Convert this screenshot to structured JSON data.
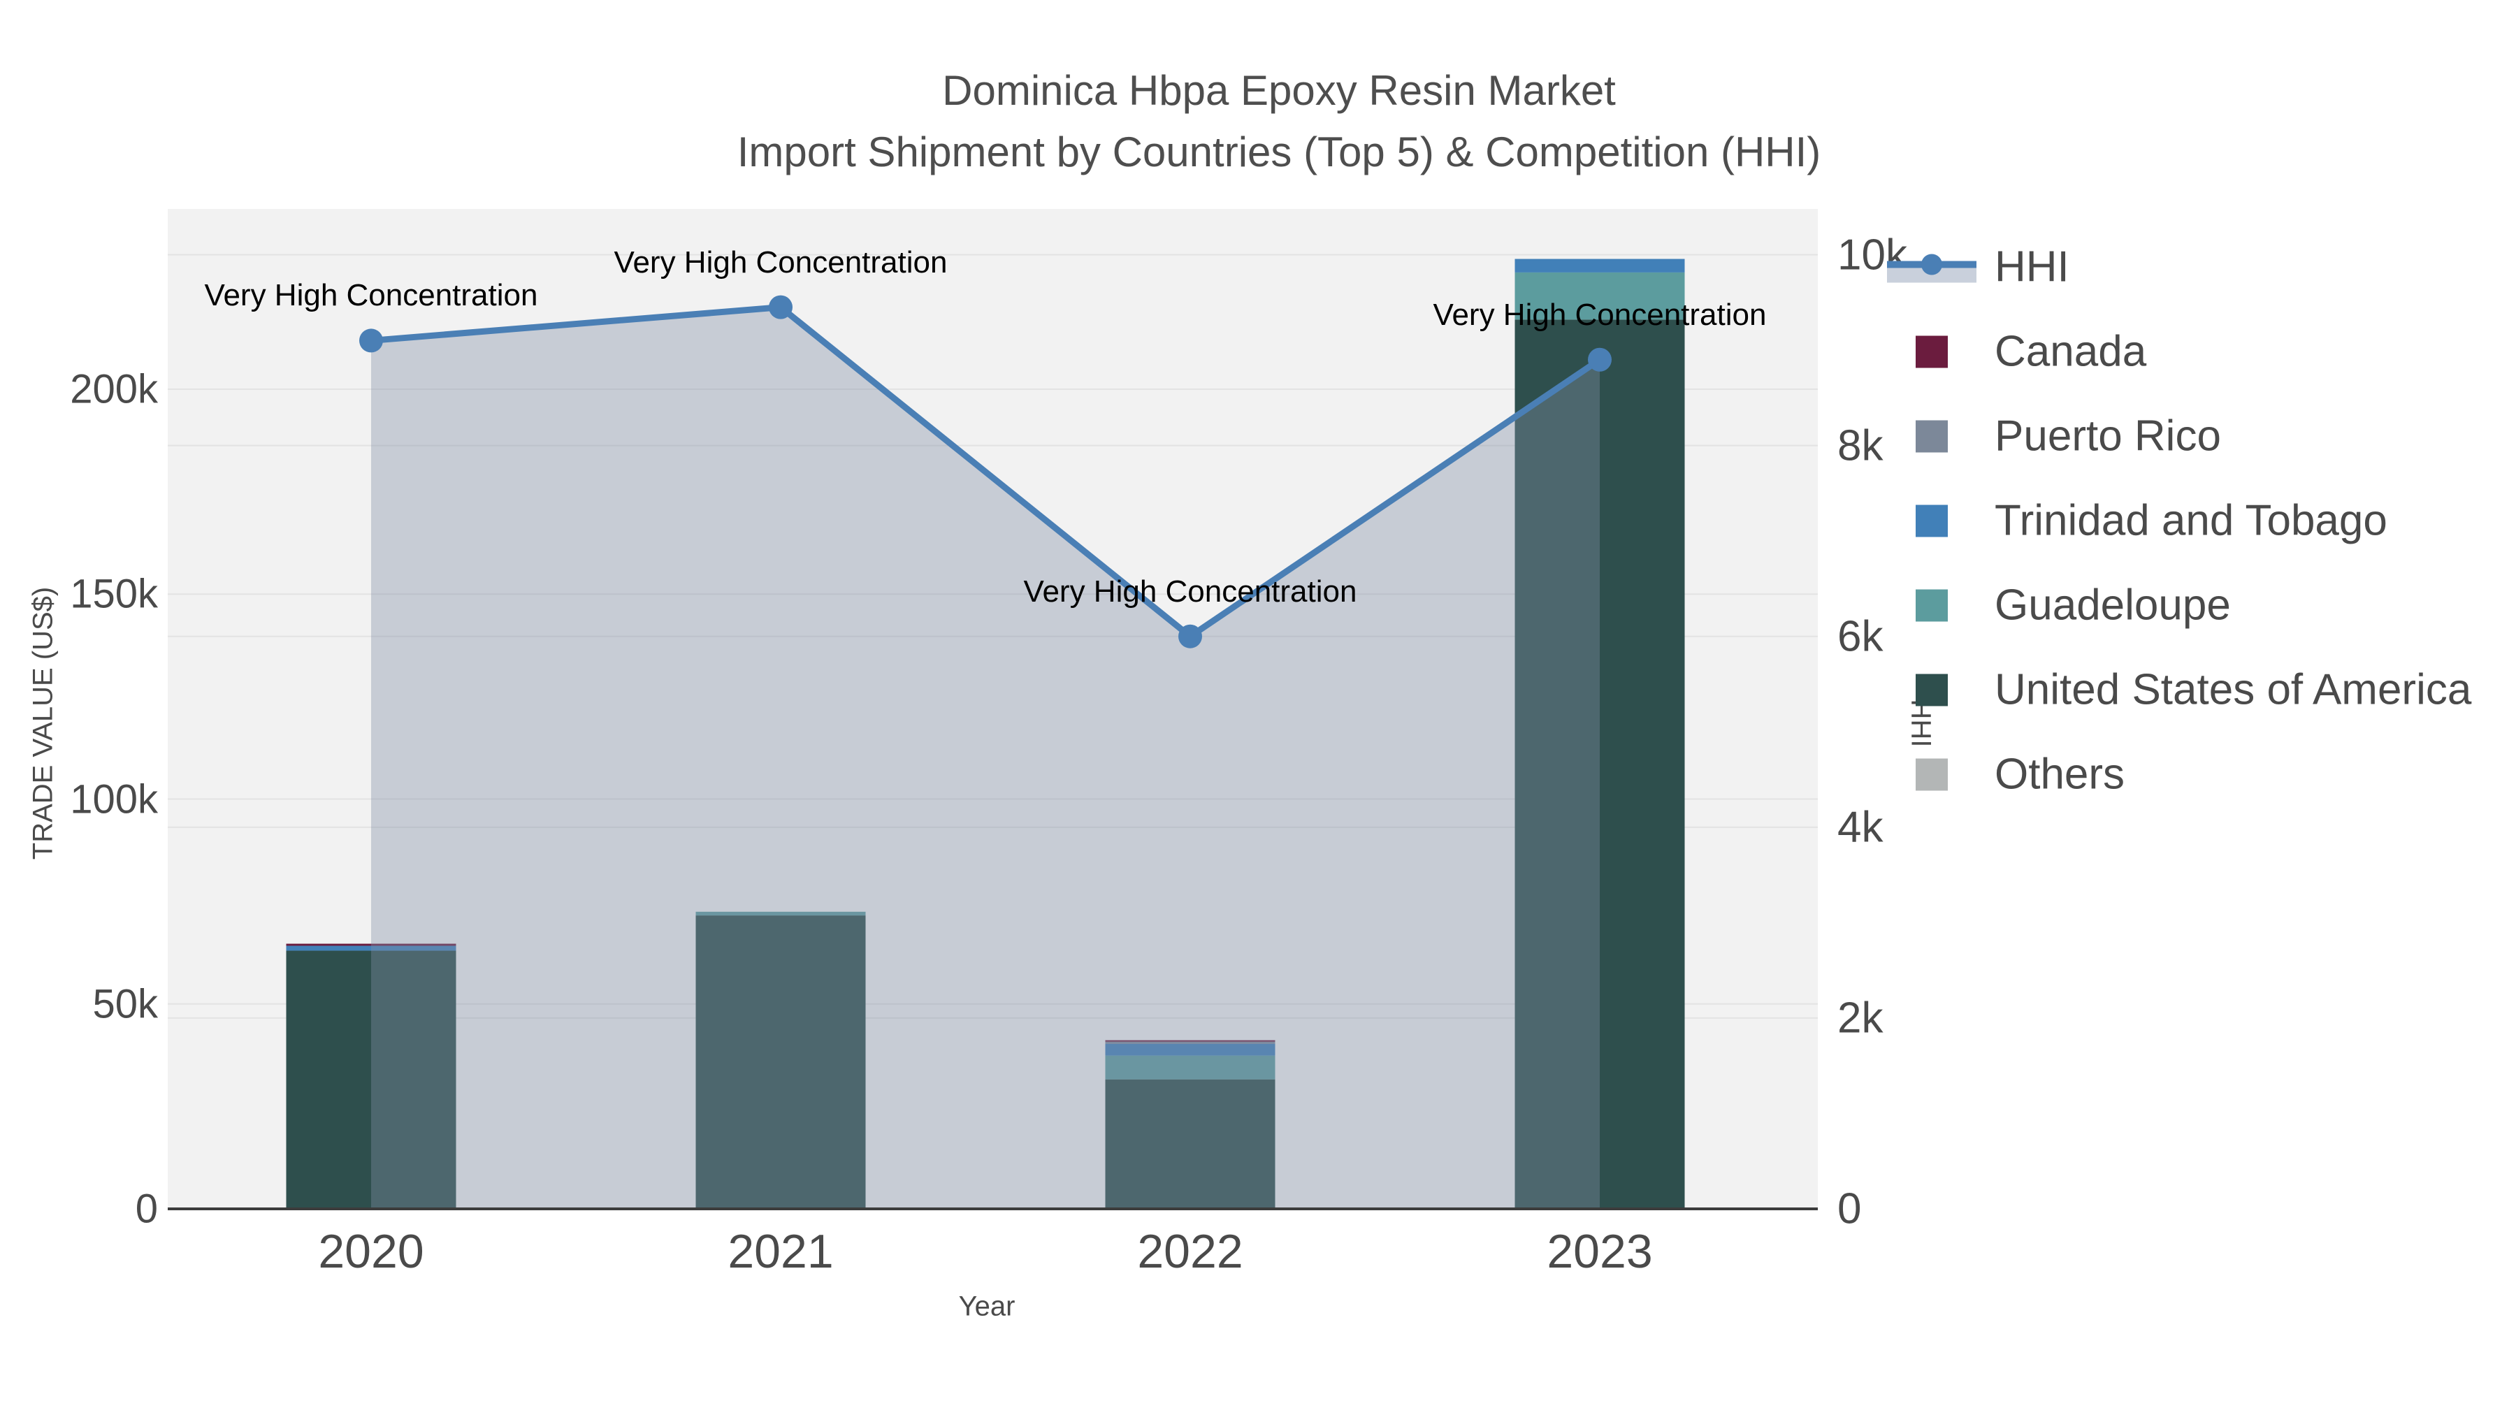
{
  "title": "Dominica Hbpa Epoxy Resin Market",
  "subtitle": "Import Shipment by Countries (Top 5) & Competition (HHI)",
  "chart_data": {
    "type": "bar+line",
    "categories": [
      "2020",
      "2021",
      "2022",
      "2023"
    ],
    "xlabel": "Year",
    "ylabel_left": "TRADE VALUE (US$)",
    "ylabel_right": "HHI",
    "left_axis": {
      "max": 244000,
      "ticks": [
        {
          "label": "0",
          "value": 0
        },
        {
          "label": "50k",
          "value": 50000
        },
        {
          "label": "100k",
          "value": 100000
        },
        {
          "label": "150k",
          "value": 150000
        },
        {
          "label": "200k",
          "value": 200000
        }
      ]
    },
    "right_axis": {
      "max": 10480,
      "ticks": [
        {
          "label": "0",
          "value": 0
        },
        {
          "label": "2k",
          "value": 2000
        },
        {
          "label": "4k",
          "value": 4000
        },
        {
          "label": "6k",
          "value": 6000
        },
        {
          "label": "8k",
          "value": 8000
        },
        {
          "label": "10k",
          "value": 10000
        }
      ]
    },
    "bar_series": [
      {
        "name": "United States of America",
        "color": "#2e4f4d",
        "values": [
          63000,
          71600,
          31600,
          217000
        ]
      },
      {
        "name": "Guadeloupe",
        "color": "#5c9c9e",
        "values": [
          0,
          900,
          5800,
          11500
        ]
      },
      {
        "name": "Trinidad and Tobago",
        "color": "#4180b8",
        "values": [
          1200,
          0,
          2900,
          3300
        ]
      },
      {
        "name": "Puerto Rico",
        "color": "#7c8899",
        "values": [
          0,
          0,
          500,
          0
        ]
      },
      {
        "name": "Canada",
        "color": "#6b1c3e",
        "values": [
          500,
          0,
          350,
          0
        ]
      },
      {
        "name": "Others",
        "color": "#b3b6b6",
        "values": [
          0,
          0,
          0,
          0
        ]
      }
    ],
    "line_series": {
      "name": "HHI",
      "color": "#4a7fb5",
      "fill_color": "rgba(130,142,165,0.38)",
      "values": [
        9100,
        9450,
        6000,
        8900
      ]
    },
    "annotations": [
      {
        "text": "Very High Concentration",
        "x": 0
      },
      {
        "text": "Very High Concentration",
        "x": 1
      },
      {
        "text": "Very High Concentration",
        "x": 2
      },
      {
        "text": "Very High Concentration",
        "x": 3
      }
    ],
    "grid": true,
    "legend_position": "right"
  },
  "legend": {
    "items": [
      {
        "label": "HHI",
        "type": "line",
        "color": "#4a7fb5",
        "band_color": "#c9d0dc"
      },
      {
        "label": "Canada",
        "type": "square",
        "color": "#6b1c3e"
      },
      {
        "label": "Puerto Rico",
        "type": "square",
        "color": "#7c8899"
      },
      {
        "label": "Trinidad and Tobago",
        "type": "square",
        "color": "#4180b8"
      },
      {
        "label": "Guadeloupe",
        "type": "square",
        "color": "#5c9c9e"
      },
      {
        "label": "United States of America",
        "type": "square",
        "color": "#2e4f4d"
      },
      {
        "label": "Others",
        "type": "square",
        "color": "#b3b6b6"
      }
    ]
  },
  "colors": {
    "plot_background": "#f2f2f2",
    "gridline": "#e3e3e3",
    "axis_line": "#3c3c3c",
    "text": "#4a4a4a",
    "annotation_text": "#000000"
  }
}
